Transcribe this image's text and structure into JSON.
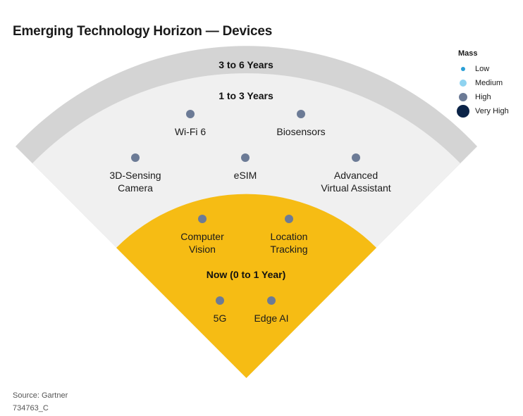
{
  "title": "Emerging Technology Horizon — Devices",
  "rings": [
    {
      "label": "3 to 6 Years",
      "color": "#d4d4d4"
    },
    {
      "label": "1 to 3 Years",
      "color": "#f0f0f0"
    },
    {
      "label": "Now (0 to 1 Year)",
      "color": "#f6bc14"
    }
  ],
  "dot_color": "#6c7b96",
  "technologies": [
    {
      "name": [
        "Wi-Fi 6"
      ],
      "ring": "1 to 3 Years",
      "mass": "High"
    },
    {
      "name": [
        "Biosensors"
      ],
      "ring": "1 to 3 Years",
      "mass": "High"
    },
    {
      "name": [
        "3D-Sensing",
        "Camera"
      ],
      "ring": "1 to 3 Years",
      "mass": "High"
    },
    {
      "name": [
        "eSIM"
      ],
      "ring": "1 to 3 Years",
      "mass": "High"
    },
    {
      "name": [
        "Advanced",
        "Virtual Assistant"
      ],
      "ring": "1 to 3 Years",
      "mass": "High"
    },
    {
      "name": [
        "Computer",
        "Vision"
      ],
      "ring": "Now (0 to 1 Year)",
      "mass": "High"
    },
    {
      "name": [
        "Location",
        "Tracking"
      ],
      "ring": "Now (0 to 1 Year)",
      "mass": "High"
    },
    {
      "name": [
        "5G"
      ],
      "ring": "Now (0 to 1 Year)",
      "mass": "High"
    },
    {
      "name": [
        "Edge AI"
      ],
      "ring": "Now (0 to 1 Year)",
      "mass": "High"
    }
  ],
  "legend": {
    "title": "Mass",
    "items": [
      {
        "label": "Low",
        "color": "#2a9fd6"
      },
      {
        "label": "Medium",
        "color": "#8fd3f0"
      },
      {
        "label": "High",
        "color": "#6c7b96"
      },
      {
        "label": "Very High",
        "color": "#0b2347"
      }
    ]
  },
  "footer": {
    "source": "Source: Gartner",
    "id": "734763_C"
  }
}
